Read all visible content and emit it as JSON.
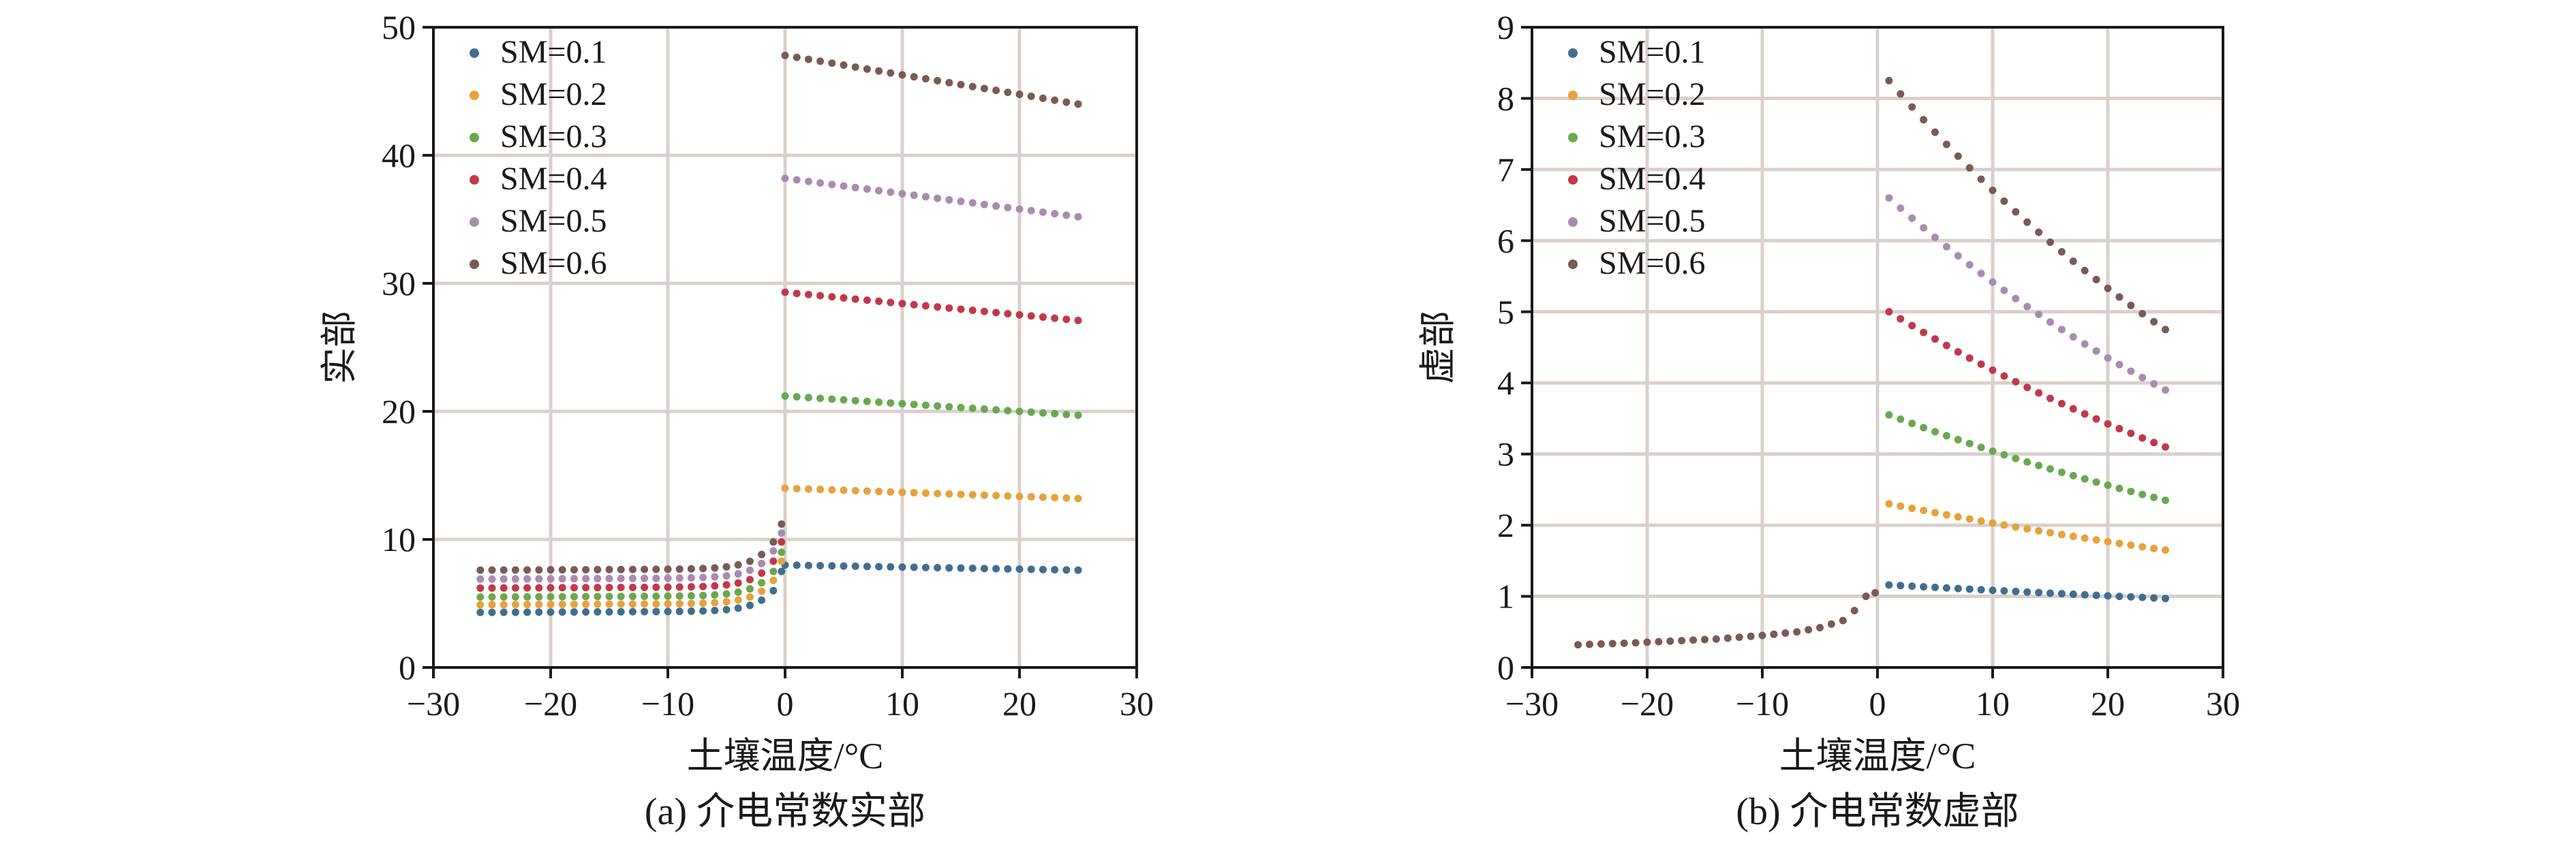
{
  "chart_data": [
    {
      "type": "scatter",
      "caption": "(a) 介电常数实部",
      "xlabel": "土壤温度/°C",
      "ylabel": "实部",
      "xlim": [
        -30,
        30
      ],
      "ylim": [
        0,
        50
      ],
      "xticks": [
        -30,
        -20,
        -10,
        0,
        10,
        20,
        30
      ],
      "yticks": [
        0,
        10,
        20,
        30,
        40,
        50
      ],
      "xtick_labels": [
        "−30",
        "−20",
        "−10",
        "0",
        "10",
        "20",
        "30"
      ],
      "ytick_labels": [
        "0",
        "10",
        "20",
        "30",
        "40",
        "50"
      ],
      "grid": true,
      "legend_position": "top-left",
      "series": [
        {
          "name": "SM=0.1",
          "color": "#3f6f8f",
          "frozen": [
            4.3,
            4.4,
            6.0,
            7.5
          ],
          "thawed": [
            8.0,
            7.6
          ]
        },
        {
          "name": "SM=0.2",
          "color": "#e6a23c",
          "frozen": [
            4.9,
            5.0,
            6.8,
            8.3
          ],
          "thawed": [
            14.0,
            13.2
          ]
        },
        {
          "name": "SM=0.3",
          "color": "#6aa84f",
          "frozen": [
            5.5,
            5.6,
            7.5,
            9.0
          ],
          "thawed": [
            21.2,
            19.7
          ]
        },
        {
          "name": "SM=0.4",
          "color": "#c0394b",
          "frozen": [
            6.2,
            6.3,
            8.3,
            9.8
          ],
          "thawed": [
            29.3,
            27.1
          ]
        },
        {
          "name": "SM=0.5",
          "color": "#a98bb0",
          "frozen": [
            6.9,
            7.0,
            9.1,
            10.5
          ],
          "thawed": [
            38.2,
            35.2
          ]
        },
        {
          "name": "SM=0.6",
          "color": "#7a5a55",
          "frozen": [
            7.6,
            7.7,
            9.8,
            11.2
          ],
          "thawed": [
            47.8,
            44.0
          ]
        }
      ]
    },
    {
      "type": "scatter",
      "caption": "(b) 介电常数虚部",
      "xlabel": "土壤温度/°C",
      "ylabel": "虚部",
      "xlim": [
        -30,
        30
      ],
      "ylim": [
        0,
        9
      ],
      "xticks": [
        -30,
        -20,
        -10,
        0,
        10,
        20,
        30
      ],
      "yticks": [
        0,
        1,
        2,
        3,
        4,
        5,
        6,
        7,
        8,
        9
      ],
      "xtick_labels": [
        "−30",
        "−20",
        "−10",
        "0",
        "10",
        "20",
        "30"
      ],
      "ytick_labels": [
        "0",
        "1",
        "2",
        "3",
        "4",
        "5",
        "6",
        "7",
        "8",
        "9"
      ],
      "grid": true,
      "legend_position": "top-left",
      "frozen_shared": {
        "x": [
          -26,
          -22,
          -18,
          -14,
          -10,
          -7,
          -5,
          -3,
          -2,
          -1,
          0
        ],
        "y": [
          0.32,
          0.34,
          0.37,
          0.4,
          0.45,
          0.5,
          0.56,
          0.66,
          0.8,
          1.0,
          1.05
        ],
        "color": "#7a5a55"
      },
      "series": [
        {
          "name": "SM=0.1",
          "color": "#3f6f8f",
          "start": 1.16,
          "mid": 1.05,
          "end": 0.97
        },
        {
          "name": "SM=0.2",
          "color": "#e6a23c",
          "start": 2.3,
          "mid": 1.98,
          "end": 1.65
        },
        {
          "name": "SM=0.3",
          "color": "#6aa84f",
          "start": 3.55,
          "mid": 2.95,
          "end": 2.35
        },
        {
          "name": "SM=0.4",
          "color": "#c0394b",
          "start": 5.0,
          "mid": 4.0,
          "end": 3.1
        },
        {
          "name": "SM=0.5",
          "color": "#a98bb0",
          "start": 6.6,
          "mid": 5.15,
          "end": 3.9
        },
        {
          "name": "SM=0.6",
          "color": "#7a5a55",
          "start": 8.25,
          "mid": 6.4,
          "end": 4.75
        }
      ]
    }
  ]
}
